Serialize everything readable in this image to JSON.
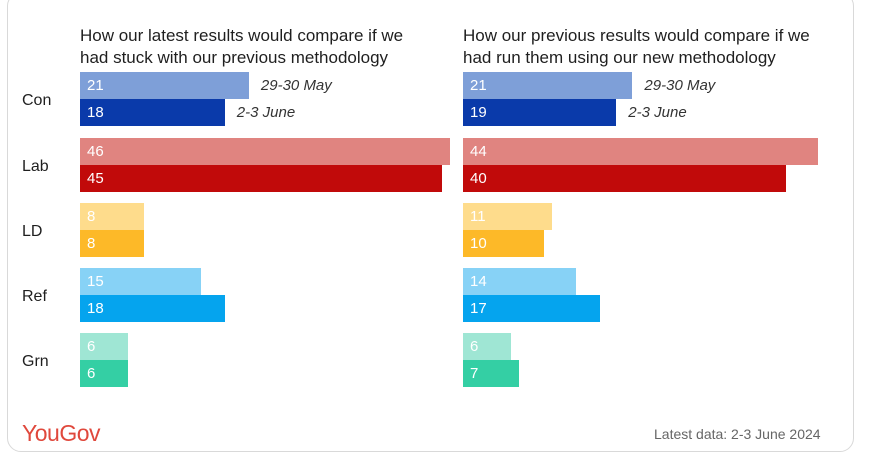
{
  "footer": {
    "brand": "YouGov",
    "latest": "Latest data: 2-3 June 2024"
  },
  "chart_data": [
    {
      "type": "bar",
      "orientation": "horizontal",
      "title": "How our latest results would compare if we had stuck with our previous methodology",
      "categories": [
        "Con",
        "Lab",
        "LD",
        "Ref",
        "Grn"
      ],
      "series": [
        {
          "name": "29-30 May",
          "values": [
            21,
            46,
            8,
            15,
            6
          ]
        },
        {
          "name": "2-3 June",
          "values": [
            18,
            45,
            8,
            18,
            6
          ]
        }
      ],
      "xlim": [
        0,
        46
      ]
    },
    {
      "type": "bar",
      "orientation": "horizontal",
      "title": "How our previous results would compare if we had run them using our new methodology",
      "categories": [
        "Con",
        "Lab",
        "LD",
        "Ref",
        "Grn"
      ],
      "series": [
        {
          "name": "29-30 May",
          "values": [
            21,
            44,
            11,
            14,
            6
          ]
        },
        {
          "name": "2-3 June",
          "values": [
            19,
            40,
            10,
            17,
            7
          ]
        }
      ],
      "xlim": [
        0,
        44
      ]
    }
  ],
  "colors": {
    "Con": [
      "#7e9fd8",
      "#0a3aaa"
    ],
    "Lab": [
      "#e08480",
      "#c10a0a"
    ],
    "LD": [
      "#fedc8c",
      "#fdb928"
    ],
    "Ref": [
      "#87d2f6",
      "#05a4ee"
    ],
    "Grn": [
      "#9fe6d4",
      "#34cfa4"
    ]
  }
}
